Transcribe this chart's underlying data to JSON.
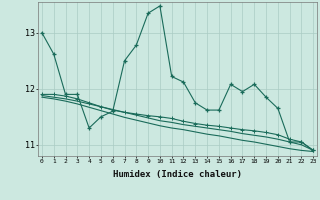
{
  "title": "",
  "xlabel": "Humidex (Indice chaleur)",
  "background_color": "#cce8e0",
  "grid_color": "#aaccc4",
  "line_color": "#1a6b5a",
  "x_values": [
    0,
    1,
    2,
    3,
    4,
    5,
    6,
    7,
    8,
    9,
    10,
    11,
    12,
    13,
    14,
    15,
    16,
    17,
    18,
    19,
    20,
    21,
    22,
    23
  ],
  "series1": [
    13.0,
    12.62,
    11.9,
    11.9,
    11.3,
    11.5,
    11.6,
    12.5,
    12.78,
    13.35,
    13.48,
    12.22,
    12.12,
    11.75,
    11.62,
    11.62,
    12.08,
    11.95,
    12.08,
    11.85,
    11.65,
    11.05,
    11.05,
    10.9
  ],
  "series2": [
    11.9,
    11.9,
    11.87,
    11.82,
    11.75,
    11.68,
    11.62,
    11.58,
    11.55,
    11.52,
    11.5,
    11.47,
    11.42,
    11.38,
    11.35,
    11.33,
    11.3,
    11.27,
    11.25,
    11.22,
    11.18,
    11.1,
    11.05,
    10.9
  ],
  "series3_upper": [
    11.88,
    11.85,
    11.82,
    11.78,
    11.73,
    11.68,
    11.63,
    11.58,
    11.53,
    11.48,
    11.43,
    11.4,
    11.36,
    11.33,
    11.3,
    11.27,
    11.24,
    11.2,
    11.17,
    11.14,
    11.1,
    11.05,
    11.0,
    10.9
  ],
  "series3_lower": [
    11.85,
    11.82,
    11.78,
    11.73,
    11.67,
    11.61,
    11.55,
    11.49,
    11.44,
    11.39,
    11.34,
    11.3,
    11.27,
    11.23,
    11.19,
    11.16,
    11.12,
    11.08,
    11.05,
    11.01,
    10.97,
    10.93,
    10.9,
    10.88
  ],
  "ylim": [
    10.8,
    13.55
  ],
  "yticks": [
    11,
    12,
    13
  ],
  "xticks": [
    0,
    1,
    2,
    3,
    4,
    5,
    6,
    7,
    8,
    9,
    10,
    11,
    12,
    13,
    14,
    15,
    16,
    17,
    18,
    19,
    20,
    21,
    22,
    23
  ]
}
